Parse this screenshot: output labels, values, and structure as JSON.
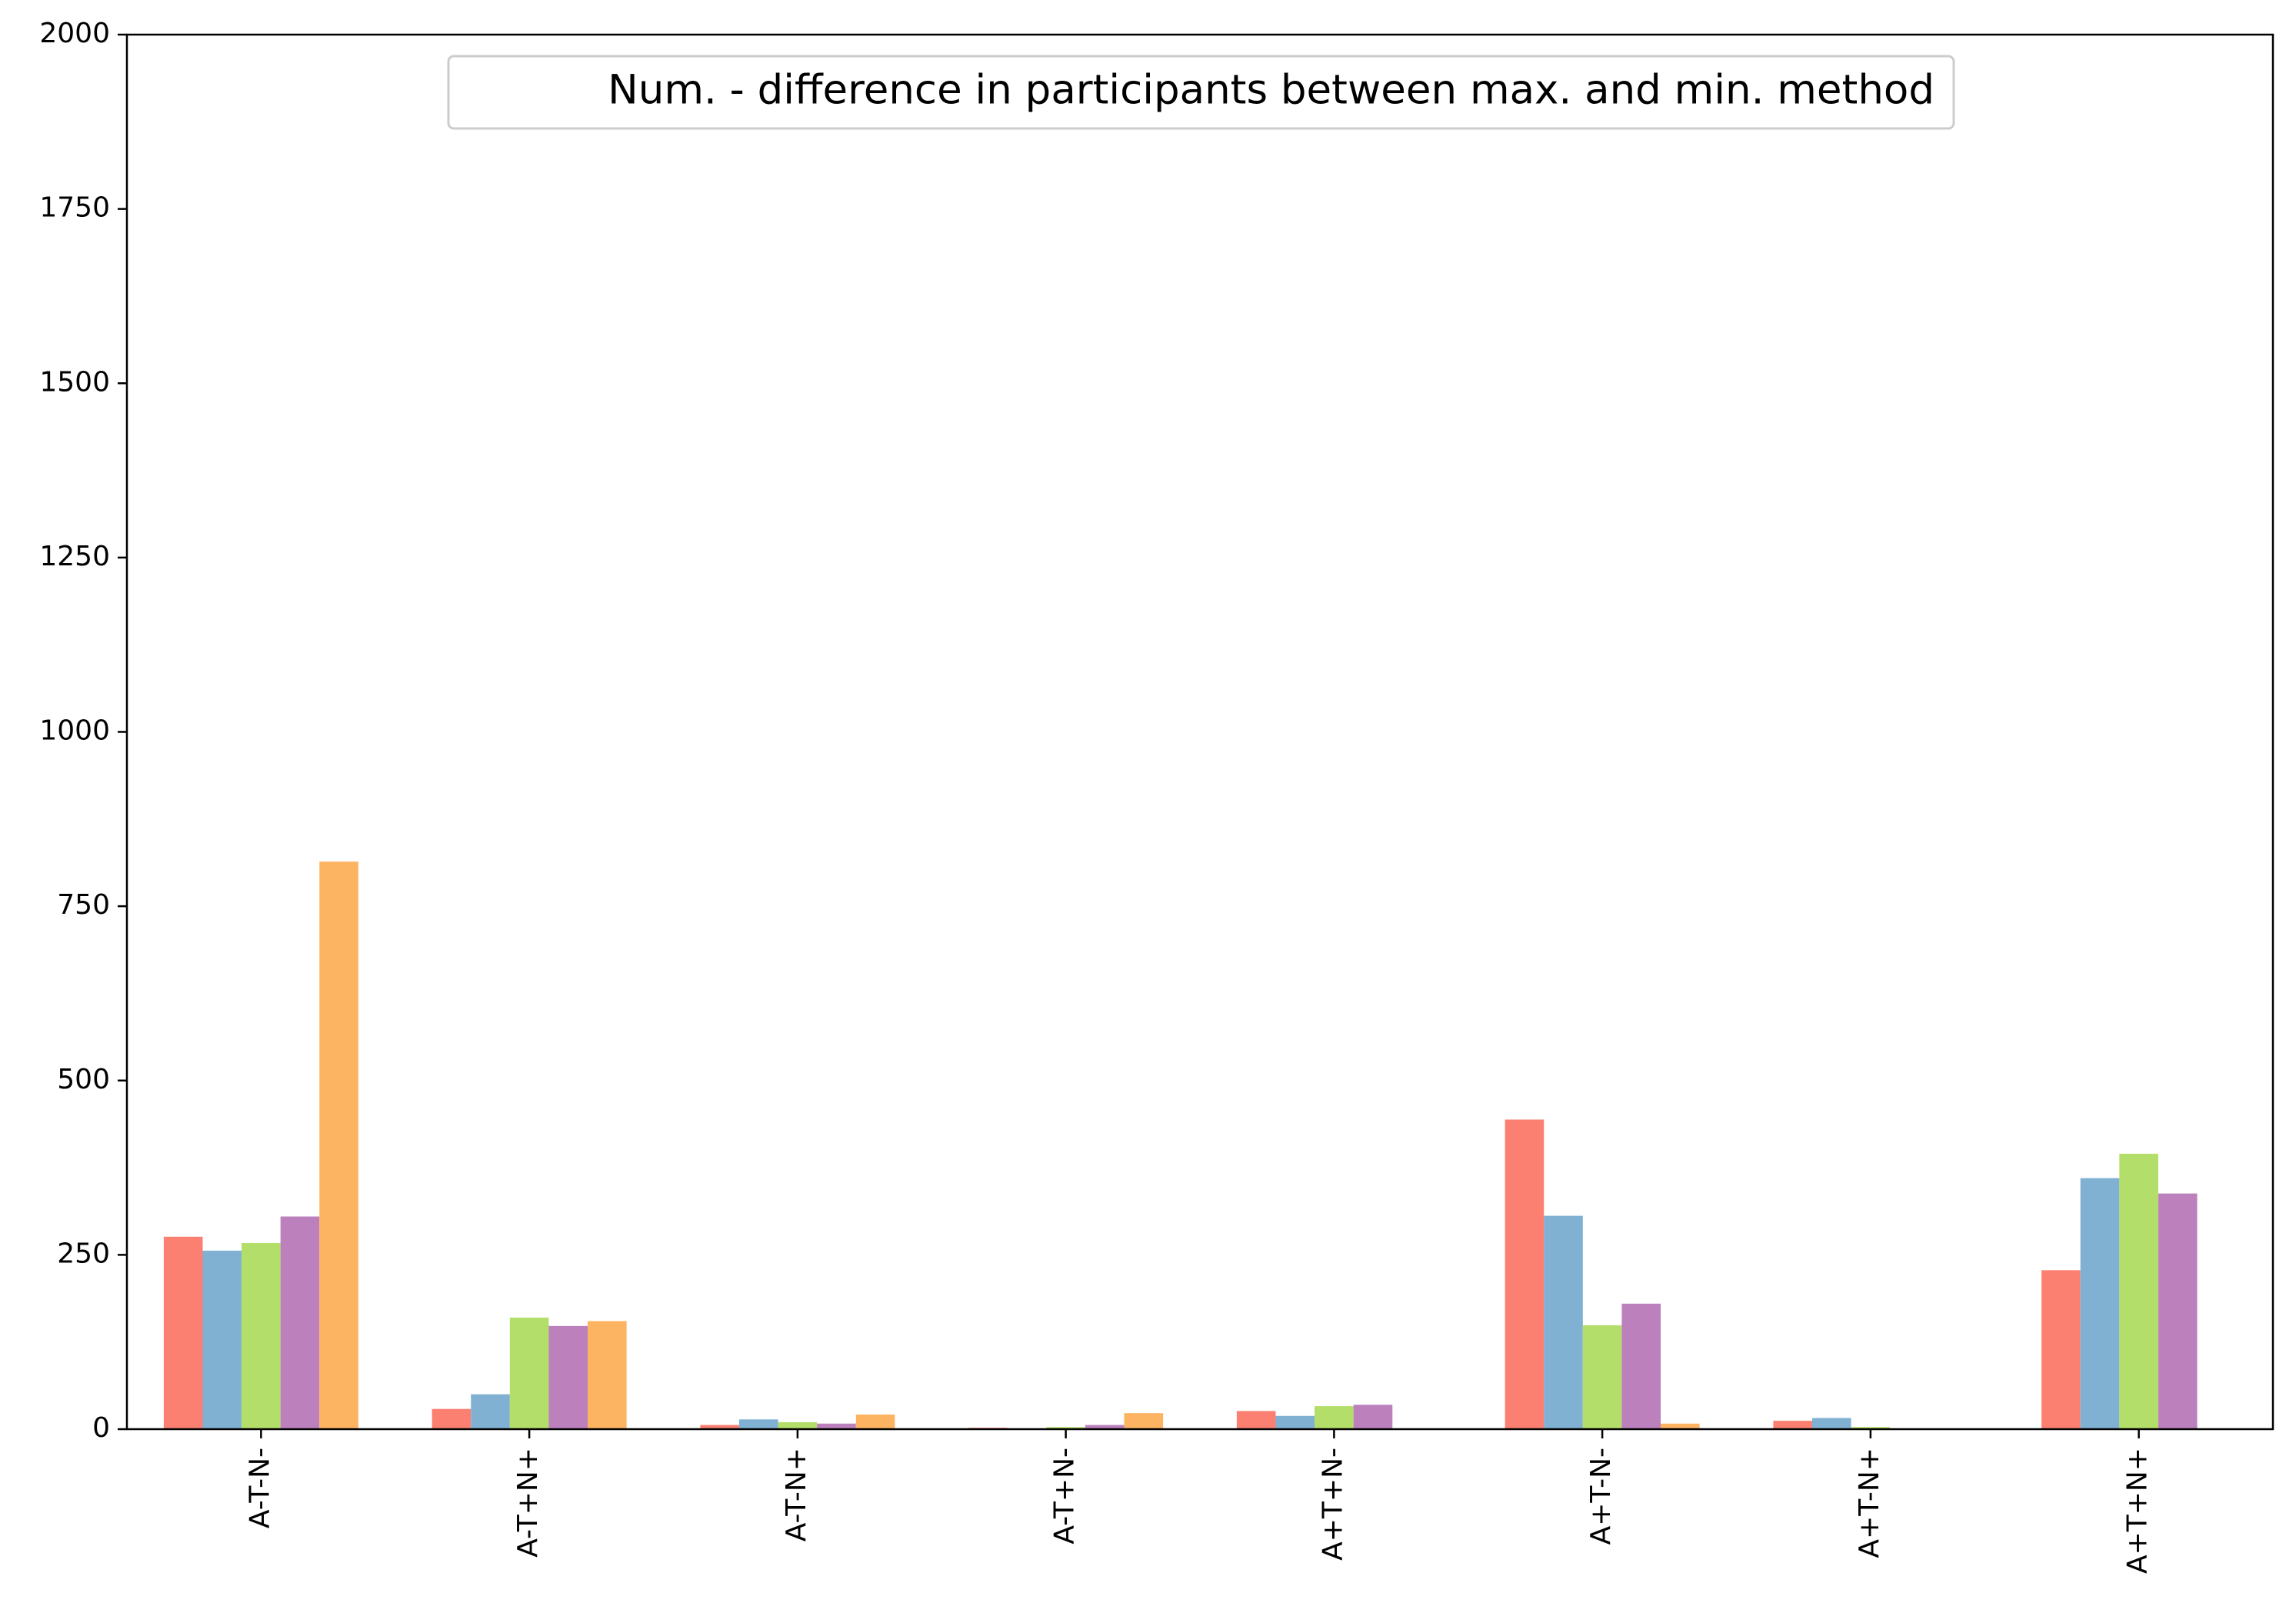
{
  "chart_data": {
    "type": "bar",
    "title": "",
    "xlabel": "",
    "ylabel": "",
    "ylim": [
      0,
      2000
    ],
    "yticks": [
      0,
      250,
      500,
      750,
      1000,
      1250,
      1500,
      1750,
      2000
    ],
    "ytick_labels": [
      "0",
      "250",
      "500",
      "750",
      "1000",
      "1250",
      "1500",
      "1750",
      "2000"
    ],
    "categories": [
      "A-T-N-",
      "A-T+N+",
      "A-T-N+",
      "A-T+N-",
      "A+T+N-",
      "A+T-N-",
      "A+T-N+",
      "A+T+N+"
    ],
    "legend": {
      "placement": "top-center",
      "text": "Num. - difference in participants between max. and min. method"
    },
    "grid": false,
    "series": [
      {
        "color": "#FB8072",
        "values": [
          276,
          29,
          6,
          2,
          26,
          444,
          12,
          228
        ]
      },
      {
        "color": "#80B1D3",
        "values": [
          256,
          50,
          14,
          0,
          19,
          306,
          16,
          360
        ]
      },
      {
        "color": "#B3DE69",
        "values": [
          267,
          160,
          10,
          3,
          33,
          149,
          3,
          395
        ]
      },
      {
        "color": "#BC80BD",
        "values": [
          305,
          148,
          8,
          6,
          35,
          180,
          0,
          338
        ]
      },
      {
        "color": "#FDB462",
        "values": [
          814,
          155,
          21,
          23,
          0,
          8,
          0,
          0
        ]
      }
    ]
  }
}
